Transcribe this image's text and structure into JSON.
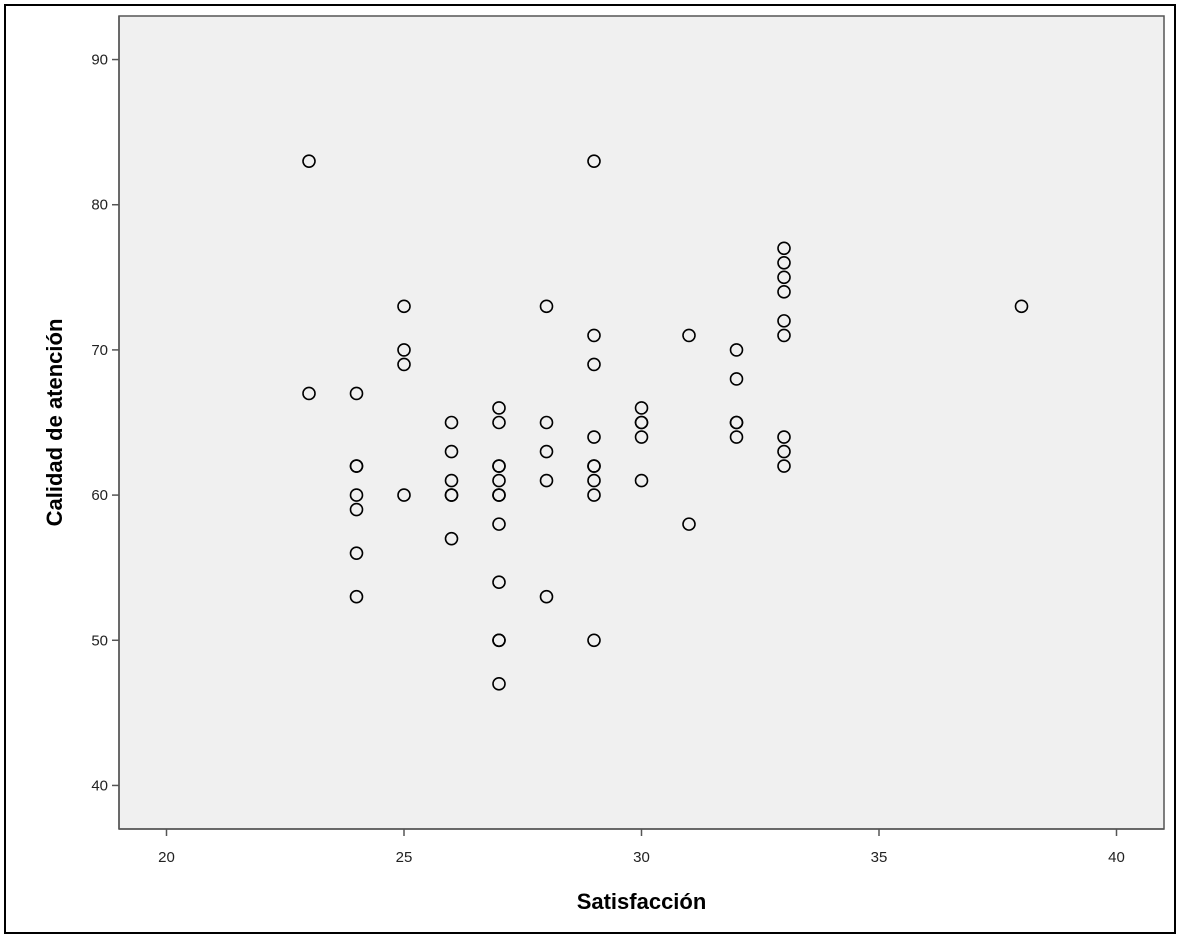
{
  "chart_data": {
    "type": "scatter",
    "title": "",
    "xlabel": "Satisfacción",
    "ylabel": "Calidad de atención",
    "xlim": [
      19,
      41
    ],
    "ylim": [
      37,
      93
    ],
    "xticks": [
      20,
      25,
      30,
      35,
      40
    ],
    "yticks": [
      40,
      50,
      60,
      70,
      80,
      90
    ],
    "grid": false,
    "colors": {
      "plot_background": "#f0f0f0",
      "marker_stroke": "#000000",
      "axis": "#555555"
    },
    "series": [
      {
        "marker": "hollow-circle",
        "points": [
          [
            23,
            83
          ],
          [
            23,
            67
          ],
          [
            24,
            67
          ],
          [
            24,
            62
          ],
          [
            24,
            62
          ],
          [
            24,
            60
          ],
          [
            24,
            59
          ],
          [
            24,
            56
          ],
          [
            24,
            53
          ],
          [
            25,
            73
          ],
          [
            25,
            70
          ],
          [
            25,
            69
          ],
          [
            25,
            60
          ],
          [
            26,
            65
          ],
          [
            26,
            63
          ],
          [
            26,
            61
          ],
          [
            26,
            60
          ],
          [
            26,
            60
          ],
          [
            26,
            57
          ],
          [
            27,
            66
          ],
          [
            27,
            65
          ],
          [
            27,
            62
          ],
          [
            27,
            62
          ],
          [
            27,
            61
          ],
          [
            27,
            60
          ],
          [
            27,
            60
          ],
          [
            27,
            58
          ],
          [
            27,
            54
          ],
          [
            27,
            50
          ],
          [
            27,
            50
          ],
          [
            27,
            47
          ],
          [
            28,
            73
          ],
          [
            28,
            65
          ],
          [
            28,
            63
          ],
          [
            28,
            61
          ],
          [
            28,
            53
          ],
          [
            29,
            83
          ],
          [
            29,
            71
          ],
          [
            29,
            69
          ],
          [
            29,
            64
          ],
          [
            29,
            62
          ],
          [
            29,
            62
          ],
          [
            29,
            61
          ],
          [
            29,
            60
          ],
          [
            29,
            50
          ],
          [
            30,
            66
          ],
          [
            30,
            65
          ],
          [
            30,
            65
          ],
          [
            30,
            64
          ],
          [
            30,
            61
          ],
          [
            31,
            71
          ],
          [
            31,
            58
          ],
          [
            32,
            70
          ],
          [
            32,
            68
          ],
          [
            32,
            65
          ],
          [
            32,
            65
          ],
          [
            32,
            64
          ],
          [
            33,
            77
          ],
          [
            33,
            76
          ],
          [
            33,
            75
          ],
          [
            33,
            74
          ],
          [
            33,
            72
          ],
          [
            33,
            71
          ],
          [
            33,
            64
          ],
          [
            33,
            63
          ],
          [
            33,
            62
          ],
          [
            38,
            73
          ]
        ]
      }
    ]
  }
}
